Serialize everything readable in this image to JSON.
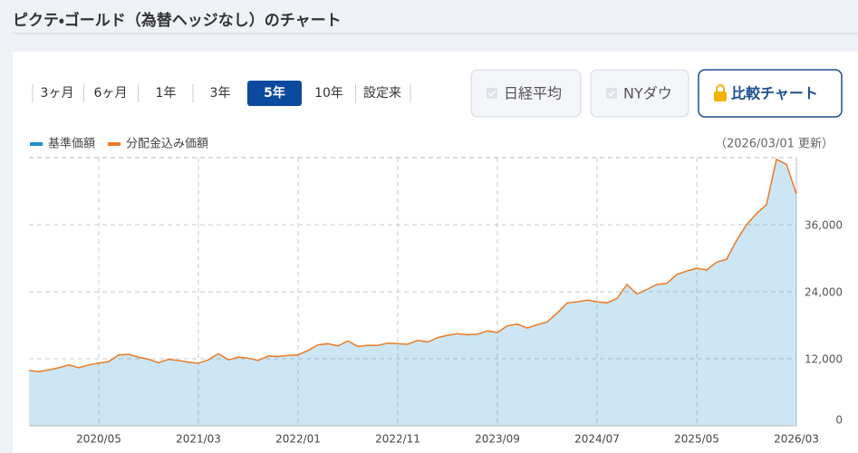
{
  "header": {
    "title": "ピクテ・ゴールド（為替ヘッジなし）のチャート"
  },
  "tabs": {
    "items": [
      "3ヶ月",
      "6ヶ月",
      "1年",
      "3年",
      "5年",
      "10年",
      "設定来"
    ],
    "active": 4
  },
  "buttons": [
    "日経平均",
    "NYダウ",
    "比較チャート"
  ],
  "updated": "（2026/03/01 更新）",
  "chart_data": {
    "type": "area",
    "categories": [
      null,
      null,
      null,
      null,
      null,
      null,
      null,
      "2020/05",
      null,
      null,
      null,
      null,
      null,
      null,
      null,
      null,
      null,
      "2021/03",
      null,
      null,
      null,
      null,
      null,
      null,
      null,
      null,
      null,
      "2022/01",
      null,
      null,
      null,
      null,
      null,
      null,
      null,
      null,
      null,
      "2022/11",
      null,
      null,
      null,
      null,
      null,
      null,
      null,
      null,
      null,
      "2023/09",
      null,
      null,
      null,
      null,
      null,
      null,
      null,
      null,
      null,
      "2024/07",
      null,
      null,
      null,
      null,
      null,
      null,
      null,
      null,
      null,
      "2025/05",
      null,
      null,
      null,
      null,
      null,
      null,
      null,
      null,
      null,
      "2026/03"
    ],
    "series": [
      {
        "name": "基準価額",
        "color": "#1a8fd1",
        "values": [
          9900,
          9700,
          10000,
          10400,
          10900,
          10400,
          10900,
          11200,
          11500,
          12700,
          12800,
          12300,
          11900,
          11300,
          11900,
          11700,
          11400,
          11200,
          11800,
          12900,
          11800,
          12300,
          12100,
          11700,
          12500,
          12400,
          12600,
          12700,
          13500,
          14500,
          14700,
          14300,
          15200,
          14200,
          14400,
          14400,
          14800,
          14700,
          14600,
          15300,
          15000,
          15800,
          16200,
          16500,
          16300,
          16400,
          17000,
          16700,
          17900,
          18200,
          17500,
          18100,
          18600,
          20200,
          22000,
          22200,
          22500,
          22200,
          22000,
          22800,
          25300,
          23600,
          24400,
          25300,
          25500,
          27100,
          27700,
          28200,
          27900,
          29300,
          29800,
          33200,
          36000,
          38000,
          39600,
          47700,
          46800,
          41500
        ]
      },
      {
        "name": "分配金込み価額",
        "color": "#ee7a22",
        "values": [
          9900,
          9700,
          10000,
          10400,
          10900,
          10400,
          10900,
          11200,
          11500,
          12700,
          12800,
          12300,
          11900,
          11300,
          11900,
          11700,
          11400,
          11200,
          11800,
          12900,
          11800,
          12300,
          12100,
          11700,
          12500,
          12400,
          12600,
          12700,
          13500,
          14500,
          14700,
          14300,
          15200,
          14200,
          14400,
          14400,
          14800,
          14700,
          14600,
          15300,
          15000,
          15800,
          16200,
          16500,
          16300,
          16400,
          17000,
          16700,
          17900,
          18200,
          17500,
          18100,
          18600,
          20200,
          22000,
          22200,
          22500,
          22200,
          22000,
          22800,
          25300,
          23600,
          24400,
          25300,
          25500,
          27100,
          27700,
          28200,
          27900,
          29300,
          29800,
          33200,
          36000,
          38000,
          39600,
          47700,
          46800,
          41500
        ]
      }
    ],
    "ylim": [
      0,
      48000
    ],
    "yticks": [
      0,
      {
        "value": 12000,
        "label": "12,000"
      },
      {
        "value": 24000,
        "label": "24,000"
      },
      {
        "value": 36000,
        "label": "36,000"
      }
    ],
    "grid": true,
    "legend": "top-left"
  }
}
